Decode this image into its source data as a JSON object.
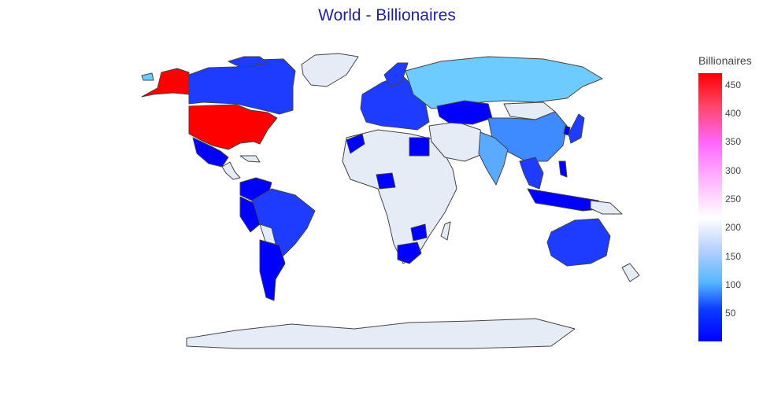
{
  "title": "World - Billionaires",
  "colorbar": {
    "title": "Billionaires",
    "ticks": [
      "450",
      "400",
      "350",
      "300",
      "250",
      "200",
      "150",
      "100",
      "50"
    ],
    "tick_values": [
      450,
      400,
      350,
      300,
      250,
      200,
      150,
      100,
      50
    ],
    "range": [
      1,
      470
    ],
    "colorscale": [
      "#0000ff",
      "#0040ff",
      "#6fccff",
      "#ffffff",
      "#ff66ff",
      "#ff0000"
    ]
  },
  "colors": {
    "no_data": "#e5ecf6",
    "border": "#444444",
    "high": "#ff0000",
    "mid_blue": "#1e3cff",
    "light_blue": "#6ecbff",
    "blue": "#0000ff"
  },
  "chart_data": {
    "type": "choropleth",
    "title": "World - Billionaires",
    "colorbar_title": "Billionaires",
    "value_range": [
      1,
      470
    ],
    "regions": [
      {
        "name": "United States",
        "value": 470
      },
      {
        "name": "Alaska",
        "value": 470
      },
      {
        "name": "Canada",
        "value": 40
      },
      {
        "name": "Mexico",
        "value": 15
      },
      {
        "name": "Brazil",
        "value": 40
      },
      {
        "name": "Argentina",
        "value": 8
      },
      {
        "name": "Russia",
        "value": 110
      },
      {
        "name": "China",
        "value": 80
      },
      {
        "name": "India",
        "value": 100
      },
      {
        "name": "Australia",
        "value": 40
      },
      {
        "name": "Kazakhstan",
        "value": 5
      },
      {
        "name": "Egypt",
        "value": 5
      },
      {
        "name": "Nigeria",
        "value": 5
      },
      {
        "name": "South Africa",
        "value": 5
      },
      {
        "name": "Tanzania",
        "value": 5
      },
      {
        "name": "Indonesia",
        "value": 25
      },
      {
        "name": "Japan",
        "value": 30
      },
      {
        "name": "Europe",
        "value": 30
      }
    ]
  }
}
